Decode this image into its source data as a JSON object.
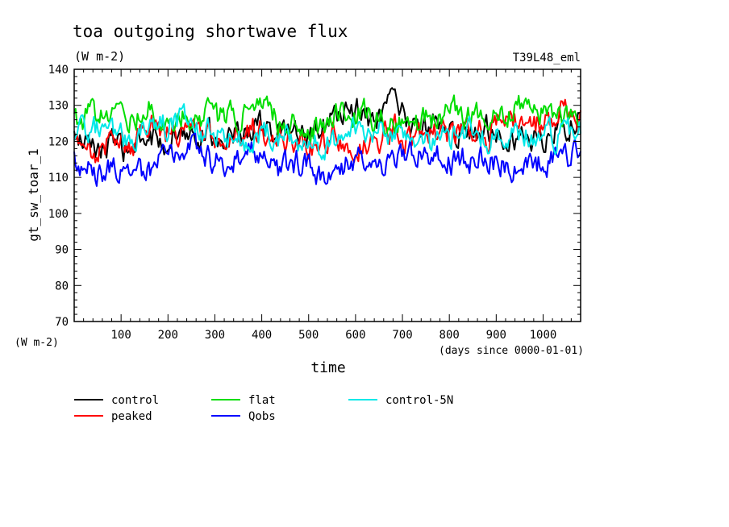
{
  "chart_data": {
    "type": "line",
    "title": "toa outgoing shortwave flux",
    "subtitle": "(W m-2)",
    "run_label": "T39L48_eml",
    "xlabel": "time",
    "x_units": "(days since 0000-01-01)",
    "ylabel": "gt_sw_toar_1",
    "y_units": "(W m-2)",
    "xlim": [
      0,
      1080
    ],
    "ylim": [
      70,
      140
    ],
    "x_ticks": [
      100,
      200,
      300,
      400,
      500,
      600,
      700,
      800,
      900,
      1000
    ],
    "y_ticks": [
      70,
      80,
      90,
      100,
      110,
      120,
      130,
      140
    ],
    "grid": false,
    "legend_position": "bottom-left",
    "x": [
      0,
      40,
      80,
      120,
      160,
      200,
      240,
      280,
      320,
      360,
      400,
      440,
      480,
      520,
      560,
      600,
      640,
      680,
      720,
      760,
      800,
      840,
      880,
      920,
      960,
      1000,
      1040,
      1080
    ],
    "series": [
      {
        "name": "control",
        "color": "#000000",
        "values": [
          121,
          118,
          119,
          117,
          121,
          120,
          124,
          122,
          121,
          123,
          125,
          122,
          121,
          123,
          127,
          129,
          124,
          131,
          123,
          125,
          124,
          121,
          124,
          122,
          121,
          120,
          124,
          127
        ]
      },
      {
        "name": "peaked",
        "color": "#ff0000",
        "values": [
          119,
          117,
          121,
          118,
          126,
          122,
          123,
          121,
          120,
          122,
          124,
          121,
          118,
          119,
          122,
          120,
          119,
          124,
          120,
          123,
          122,
          123,
          122,
          126,
          124,
          125,
          128,
          125
        ]
      },
      {
        "name": "flat",
        "color": "#00dd00",
        "values": [
          125,
          128,
          126,
          127,
          129,
          125,
          127,
          128,
          126,
          127,
          129,
          126,
          125,
          124,
          127,
          128,
          127,
          126,
          124,
          126,
          128,
          127,
          129,
          128,
          130,
          128,
          127,
          126
        ]
      },
      {
        "name": "Qobs",
        "color": "#0000ff",
        "values": [
          114,
          111,
          113,
          110,
          112,
          117,
          119,
          116,
          113,
          118,
          115,
          112,
          114,
          111,
          113,
          116,
          115,
          114,
          117,
          116,
          114,
          115,
          116,
          113,
          112,
          114,
          117,
          115
        ]
      },
      {
        "name": "control-5N",
        "color": "#00e8e8",
        "values": [
          123,
          124,
          122,
          121,
          125,
          124,
          126,
          123,
          122,
          120,
          123,
          122,
          120,
          119,
          121,
          123,
          122,
          121,
          123,
          120,
          121,
          122,
          121,
          123,
          122,
          121,
          122,
          123
        ]
      }
    ]
  }
}
